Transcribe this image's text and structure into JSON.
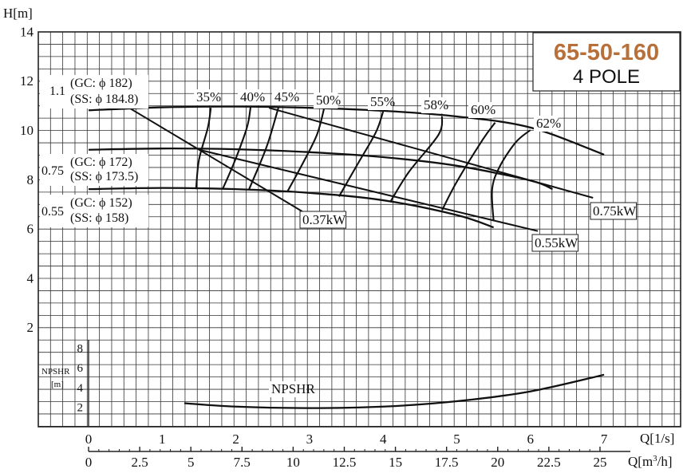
{
  "chart_data": {
    "type": "line",
    "title": "65-50-160",
    "subtitle": "4 POLE",
    "title_color": "#b8703a",
    "xlabel": "Q[1/s]",
    "xlabel2": "Q[m³/h]",
    "ylabel": "H[m]",
    "npsh_label": "NPSHR",
    "npsh_unit": "[m]",
    "xlim": [
      0,
      7.5
    ],
    "ylim": [
      0,
      14
    ],
    "npsh_ylim": [
      0,
      10
    ],
    "x_ticks": [
      "0",
      "1",
      "2",
      "3",
      "4",
      "5",
      "6",
      "7"
    ],
    "x2_ticks": [
      "0",
      "2.5",
      "5",
      "7.5",
      "10",
      "12.5",
      "15",
      "17.5",
      "20",
      "22.5",
      "25"
    ],
    "y_ticks": [
      "2",
      "4",
      "6",
      "8",
      "10",
      "12",
      "14"
    ],
    "npsh_ticks": [
      "2",
      "4",
      "6",
      "8"
    ],
    "grid": true,
    "head_curves": [
      {
        "name": "1.1",
        "gc": "(GC: ϕ 182)",
        "ss": "(SS: ϕ 184.8)",
        "x": [
          0,
          1,
          2,
          3,
          4,
          5,
          6,
          7
        ],
        "y": [
          10.8,
          10.92,
          10.95,
          10.9,
          10.78,
          10.55,
          10.1,
          9.0
        ]
      },
      {
        "name": "0.75",
        "gc": "(GC: ϕ 172)",
        "ss": "(SS: ϕ 173.5)",
        "x": [
          0,
          1,
          2,
          3,
          4,
          5,
          6,
          6.3
        ],
        "y": [
          9.2,
          9.25,
          9.22,
          9.1,
          8.9,
          8.55,
          7.95,
          7.6
        ]
      },
      {
        "name": "0.55",
        "gc": "(GC: ϕ 152)",
        "ss": "(SS: ϕ 158)",
        "x": [
          0,
          1,
          2,
          3,
          4,
          5,
          5.5
        ],
        "y": [
          7.6,
          7.65,
          7.6,
          7.45,
          7.15,
          6.55,
          6.05
        ]
      }
    ],
    "efficiency_labels": [
      "35%",
      "40%",
      "45%",
      "50%",
      "55%",
      "58%",
      "60%",
      "62%"
    ],
    "power_labels": [
      "0.37kW",
      "0.55kW",
      "0.75kW"
    ],
    "npshr": {
      "x": [
        1.3,
        2,
        3,
        4,
        5,
        6,
        7
      ],
      "y": [
        2.4,
        2.05,
        1.9,
        2.05,
        2.6,
        3.6,
        5.3
      ]
    }
  }
}
